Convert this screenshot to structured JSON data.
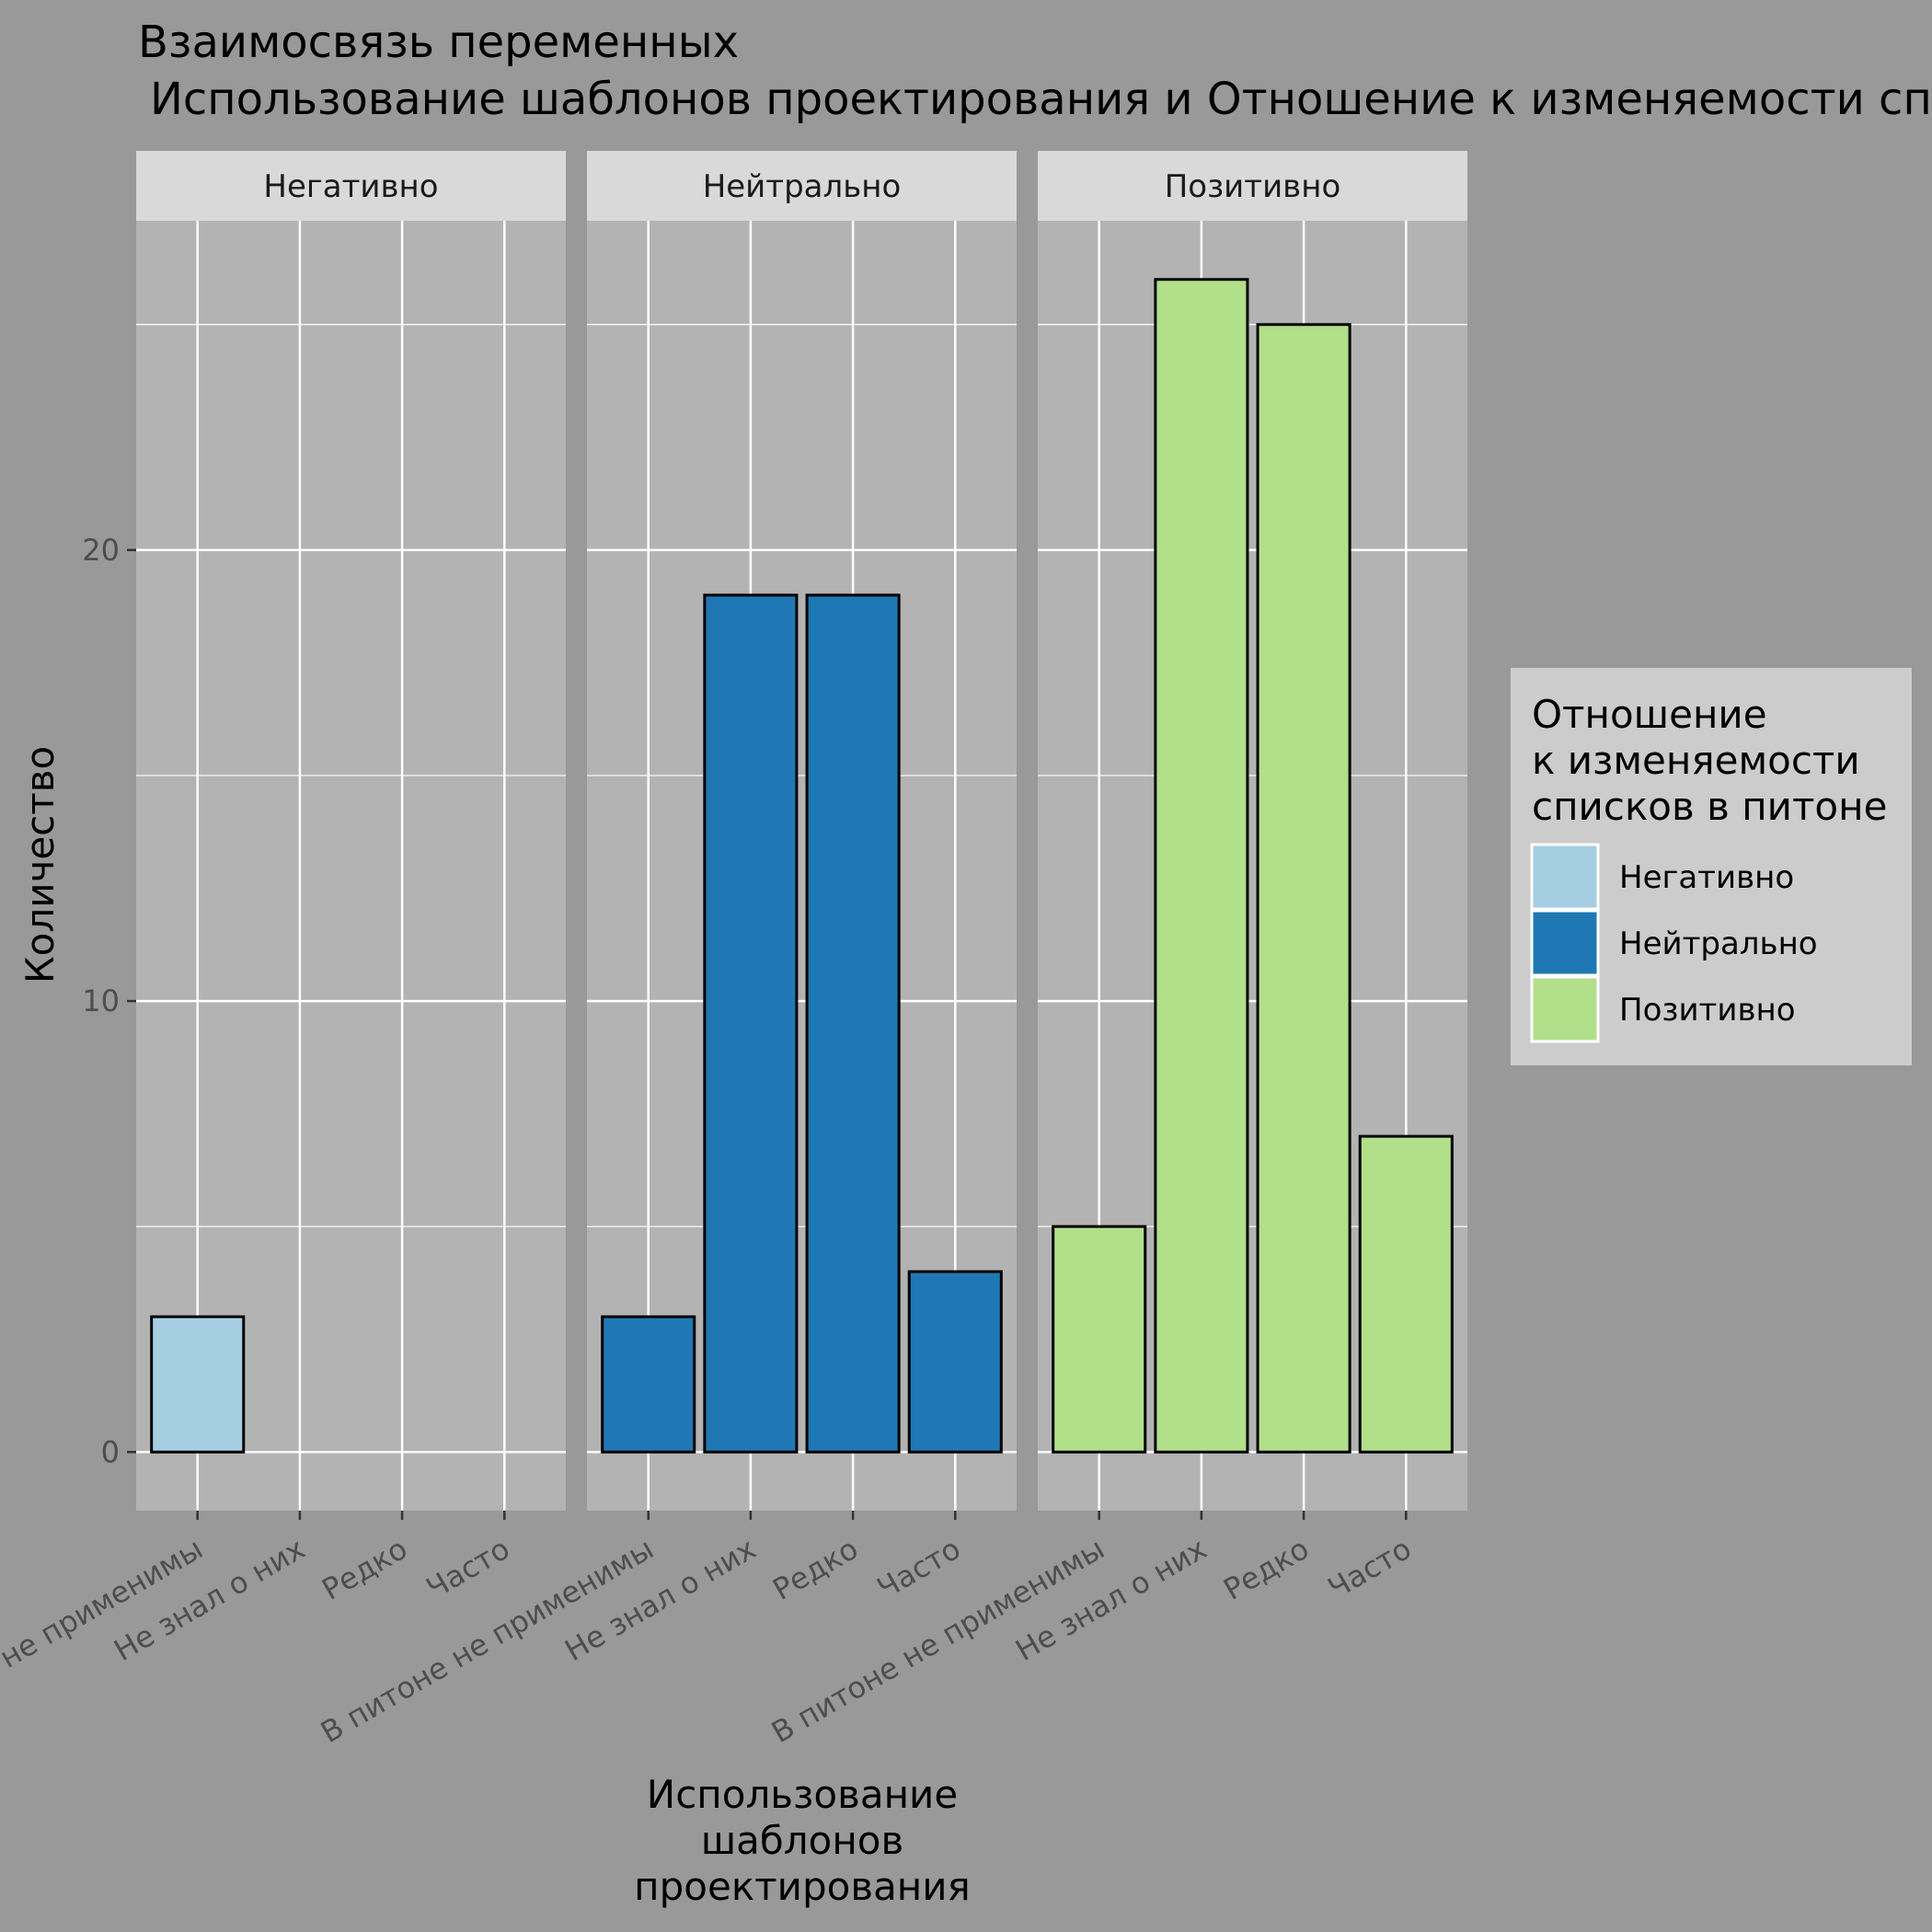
{
  "chart_data": {
    "type": "bar",
    "title": [
      "Взаимосвязь переменных",
      "Использование шаблонов проектирования и Отношение к изменяемости списков в питоне"
    ],
    "xlabel": [
      "Использование",
      "шаблонов",
      "проектирования"
    ],
    "ylabel": "Количество",
    "categories": [
      "В питоне не применимы",
      "Не знал о них",
      "Редко",
      "Часто"
    ],
    "facets": [
      "Негативно",
      "Нейтрально",
      "Позитивно"
    ],
    "series": [
      {
        "name": "Негативно",
        "color": "#a6cee3",
        "values": [
          3,
          null,
          null,
          null
        ]
      },
      {
        "name": "Нейтрально",
        "color": "#1f78b4",
        "values": [
          3,
          19,
          19,
          4
        ]
      },
      {
        "name": "Позитивно",
        "color": "#b2df8a",
        "values": [
          5,
          26,
          25,
          7
        ]
      }
    ],
    "ylim": [
      -1.3,
      27.3
    ],
    "yticks": [
      0,
      10,
      20
    ],
    "grid": true,
    "legend": {
      "title": [
        "Отношение",
        "к изменяемости",
        "списков в питоне"
      ],
      "placement": "right"
    }
  }
}
